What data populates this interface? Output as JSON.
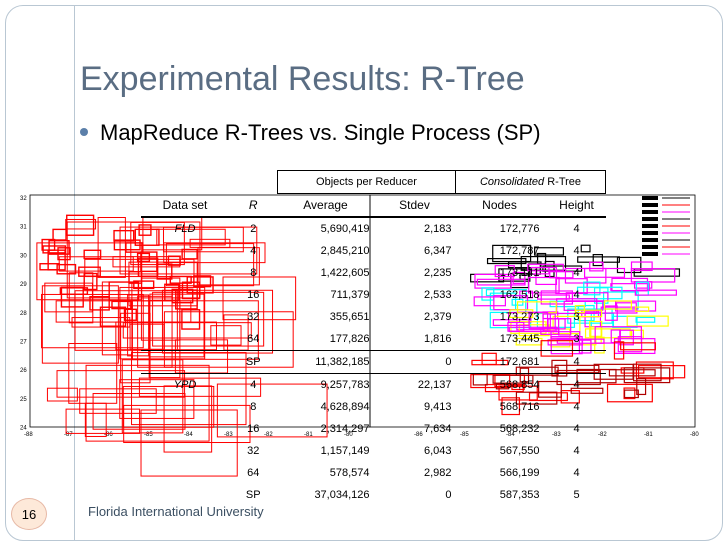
{
  "slide": {
    "title": "Experimental Results: R-Tree",
    "bullet": "MapReduce R-Trees vs. Single Process (SP)",
    "footer": "Florida International University",
    "page_number": "16"
  },
  "table": {
    "group_headers": {
      "objects_per_reducer": "Objects per Reducer",
      "consolidated_italic": "Consolidated",
      "consolidated_rest": " R-Tree"
    },
    "columns": [
      "Data set",
      "R",
      "Average",
      "Stdev",
      "Nodes",
      "Height"
    ],
    "rows": [
      {
        "dataset": "FLD",
        "r": "2",
        "average": "5,690,419",
        "stdev": "2,183",
        "nodes": "172,776",
        "height": "4"
      },
      {
        "dataset": "",
        "r": "4",
        "average": "2,845,210",
        "stdev": "6,347",
        "nodes": "172,787",
        "height": "4"
      },
      {
        "dataset": "",
        "r": "8",
        "average": "1,422,605",
        "stdev": "2,235",
        "nodes": "173,141",
        "height": "4"
      },
      {
        "dataset": "",
        "r": "16",
        "average": "711,379",
        "stdev": "2,533",
        "nodes": "162,518",
        "height": "4"
      },
      {
        "dataset": "",
        "r": "32",
        "average": "355,651",
        "stdev": "2,379",
        "nodes": "173,273",
        "height": "3"
      },
      {
        "dataset": "",
        "r": "64",
        "average": "177,826",
        "stdev": "1,816",
        "nodes": "173,445",
        "height": "3"
      },
      {
        "dataset": "",
        "r": "SP",
        "average": "11,382,185",
        "stdev": "0",
        "nodes": "172,681",
        "height": "4"
      },
      {
        "dataset": "YPD",
        "r": "4",
        "average": "9,257,783",
        "stdev": "22,137",
        "nodes": "568,854",
        "height": "4"
      },
      {
        "dataset": "",
        "r": "8",
        "average": "4,628,894",
        "stdev": "9,413",
        "nodes": "568,716",
        "height": "4"
      },
      {
        "dataset": "",
        "r": "16",
        "average": "2,314,297",
        "stdev": "7,634",
        "nodes": "568,232",
        "height": "4"
      },
      {
        "dataset": "",
        "r": "32",
        "average": "1,157,149",
        "stdev": "6,043",
        "nodes": "567,550",
        "height": "4"
      },
      {
        "dataset": "",
        "r": "64",
        "average": "578,574",
        "stdev": "2,982",
        "nodes": "566,199",
        "height": "4"
      },
      {
        "dataset": "",
        "r": "SP",
        "average": "37,034,126",
        "stdev": "0",
        "nodes": "587,353",
        "height": "5"
      }
    ]
  },
  "background_plots": {
    "left_y_ticks": [
      "32",
      "31",
      "30",
      "29",
      "28",
      "27",
      "26",
      "25",
      "24"
    ],
    "left_x_ticks": [
      "-88",
      "-87",
      "-86",
      "-85",
      "-84",
      "-83",
      "-82",
      "-81",
      "-80"
    ],
    "right_x_ticks": [
      "-86",
      "-85",
      "-84",
      "-83",
      "-82",
      "-81",
      "-80"
    ],
    "colors": {
      "red": "#ff0000",
      "magenta": "#ff00ff",
      "cyan": "#00ffff",
      "yellow": "#ffff00",
      "darkred": "#b00000"
    }
  }
}
